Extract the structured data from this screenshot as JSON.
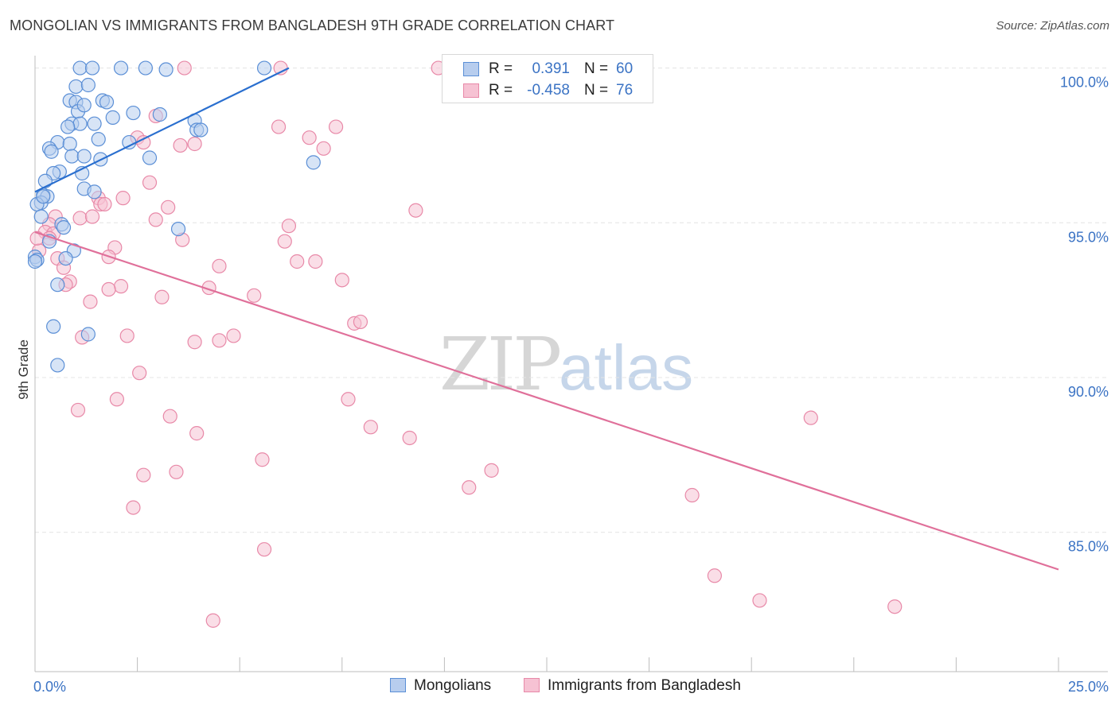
{
  "title": "MONGOLIAN VS IMMIGRANTS FROM BANGLADESH 9TH GRADE CORRELATION CHART",
  "source": "Source: ZipAtlas.com",
  "watermark": {
    "zip": "ZIP",
    "atlas": "atlas"
  },
  "colors": {
    "blue_fill": "#b7cdee",
    "blue_stroke": "#5b8fd6",
    "blue_line": "#2a6fcf",
    "pink_fill": "#f6c2d3",
    "pink_stroke": "#e889a8",
    "pink_line": "#e0709a",
    "tick_text": "#3b73c4",
    "grid": "#e4e4e4"
  },
  "legend": {
    "rows": [
      {
        "r_label": "R =",
        "r_value": "0.391",
        "n_label": "N =",
        "n_value": "60"
      },
      {
        "r_label": "R =",
        "r_value": "-0.458",
        "n_label": "N =",
        "n_value": "76"
      }
    ]
  },
  "chart_data": {
    "type": "scatter",
    "title": "MONGOLIAN VS IMMIGRANTS FROM BANGLADESH 9TH GRADE CORRELATION CHART",
    "xlabel": "",
    "ylabel": "9th Grade",
    "xlim": [
      0,
      25
    ],
    "ylim": [
      80.5,
      100.4
    ],
    "x_tick_labels": [
      {
        "value": 0,
        "label": "0.0%"
      },
      {
        "value": 25,
        "label": "25.0%"
      }
    ],
    "y_tick_labels": [
      {
        "value": 100,
        "label": "100.0%"
      },
      {
        "value": 95,
        "label": "95.0%"
      },
      {
        "value": 90,
        "label": "90.0%"
      },
      {
        "value": 85,
        "label": "85.0%"
      }
    ],
    "grid": true,
    "legend_position": "top-center",
    "series": [
      {
        "name": "Mongolians",
        "color": "#5b8fd6",
        "trend": {
          "x": [
            0.0,
            6.2
          ],
          "y": [
            96.0,
            100.0
          ]
        },
        "points": [
          [
            1.1,
            100.0
          ],
          [
            1.4,
            100.0
          ],
          [
            2.1,
            100.0
          ],
          [
            2.7,
            100.0
          ],
          [
            3.2,
            99.95
          ],
          [
            5.6,
            100.0
          ],
          [
            1.0,
            99.4
          ],
          [
            1.3,
            99.45
          ],
          [
            0.85,
            98.95
          ],
          [
            1.0,
            98.9
          ],
          [
            1.65,
            98.95
          ],
          [
            1.75,
            98.9
          ],
          [
            1.05,
            98.6
          ],
          [
            1.2,
            98.8
          ],
          [
            0.9,
            98.2
          ],
          [
            1.1,
            98.2
          ],
          [
            1.45,
            98.2
          ],
          [
            1.9,
            98.4
          ],
          [
            2.4,
            98.55
          ],
          [
            3.05,
            98.5
          ],
          [
            3.9,
            98.3
          ],
          [
            3.95,
            98.0
          ],
          [
            4.05,
            98.0
          ],
          [
            0.8,
            98.1
          ],
          [
            0.55,
            97.6
          ],
          [
            0.85,
            97.55
          ],
          [
            1.55,
            97.7
          ],
          [
            2.3,
            97.6
          ],
          [
            0.35,
            97.4
          ],
          [
            0.4,
            97.3
          ],
          [
            0.9,
            97.15
          ],
          [
            1.2,
            97.15
          ],
          [
            1.6,
            97.05
          ],
          [
            2.8,
            97.1
          ],
          [
            6.8,
            96.95
          ],
          [
            0.6,
            96.65
          ],
          [
            0.45,
            96.6
          ],
          [
            1.15,
            96.6
          ],
          [
            0.25,
            96.35
          ],
          [
            1.2,
            96.1
          ],
          [
            1.45,
            96.0
          ],
          [
            0.2,
            95.9
          ],
          [
            0.3,
            95.85
          ],
          [
            0.15,
            95.65
          ],
          [
            0.05,
            95.6
          ],
          [
            0.15,
            95.2
          ],
          [
            0.65,
            94.95
          ],
          [
            0.7,
            94.85
          ],
          [
            3.5,
            94.8
          ],
          [
            0.35,
            94.4
          ],
          [
            0.95,
            94.1
          ],
          [
            0.0,
            93.9
          ],
          [
            0.05,
            93.8
          ],
          [
            0.75,
            93.85
          ],
          [
            0.55,
            93.0
          ],
          [
            0.45,
            91.65
          ],
          [
            1.3,
            91.4
          ],
          [
            0.55,
            90.4
          ],
          [
            0.0,
            93.75
          ],
          [
            0.2,
            95.85
          ]
        ]
      },
      {
        "name": "Immigrants from Bangladesh",
        "color": "#e889a8",
        "trend": {
          "x": [
            0.0,
            25.0
          ],
          "y": [
            94.7,
            83.8
          ]
        },
        "points": [
          [
            3.65,
            100.0
          ],
          [
            6.0,
            100.0
          ],
          [
            9.85,
            100.0
          ],
          [
            2.95,
            98.45
          ],
          [
            5.95,
            98.1
          ],
          [
            7.35,
            98.1
          ],
          [
            2.5,
            97.75
          ],
          [
            2.65,
            97.6
          ],
          [
            3.55,
            97.5
          ],
          [
            3.9,
            97.55
          ],
          [
            6.7,
            97.75
          ],
          [
            7.05,
            97.4
          ],
          [
            2.8,
            96.3
          ],
          [
            1.55,
            95.8
          ],
          [
            2.15,
            95.8
          ],
          [
            1.6,
            95.6
          ],
          [
            1.7,
            95.6
          ],
          [
            3.25,
            95.5
          ],
          [
            9.3,
            95.4
          ],
          [
            0.5,
            95.2
          ],
          [
            1.1,
            95.15
          ],
          [
            1.4,
            95.2
          ],
          [
            2.95,
            95.1
          ],
          [
            0.35,
            94.95
          ],
          [
            6.2,
            94.9
          ],
          [
            0.25,
            94.7
          ],
          [
            0.45,
            94.65
          ],
          [
            0.35,
            94.5
          ],
          [
            3.6,
            94.45
          ],
          [
            6.1,
            94.4
          ],
          [
            1.95,
            94.2
          ],
          [
            0.1,
            94.1
          ],
          [
            1.8,
            93.9
          ],
          [
            0.55,
            93.85
          ],
          [
            6.4,
            93.75
          ],
          [
            6.85,
            93.75
          ],
          [
            4.5,
            93.6
          ],
          [
            0.7,
            93.55
          ],
          [
            0.85,
            93.1
          ],
          [
            0.75,
            93.0
          ],
          [
            7.5,
            93.15
          ],
          [
            2.1,
            92.95
          ],
          [
            1.8,
            92.85
          ],
          [
            4.25,
            92.9
          ],
          [
            5.35,
            92.65
          ],
          [
            3.1,
            92.6
          ],
          [
            1.35,
            92.45
          ],
          [
            7.8,
            91.75
          ],
          [
            7.95,
            91.8
          ],
          [
            1.15,
            91.3
          ],
          [
            2.25,
            91.35
          ],
          [
            4.5,
            91.2
          ],
          [
            4.85,
            91.35
          ],
          [
            3.9,
            91.15
          ],
          [
            2.55,
            90.15
          ],
          [
            2.0,
            89.3
          ],
          [
            7.65,
            89.3
          ],
          [
            1.05,
            88.95
          ],
          [
            3.3,
            88.75
          ],
          [
            8.2,
            88.4
          ],
          [
            18.95,
            88.7
          ],
          [
            9.15,
            88.05
          ],
          [
            3.95,
            88.2
          ],
          [
            5.55,
            87.35
          ],
          [
            11.15,
            87.0
          ],
          [
            3.45,
            86.95
          ],
          [
            2.65,
            86.85
          ],
          [
            10.6,
            86.45
          ],
          [
            16.05,
            86.2
          ],
          [
            2.4,
            85.8
          ],
          [
            5.6,
            84.45
          ],
          [
            16.6,
            83.6
          ],
          [
            17.7,
            82.8
          ],
          [
            21.0,
            82.6
          ],
          [
            4.35,
            82.15
          ],
          [
            0.05,
            94.5
          ]
        ]
      }
    ]
  }
}
